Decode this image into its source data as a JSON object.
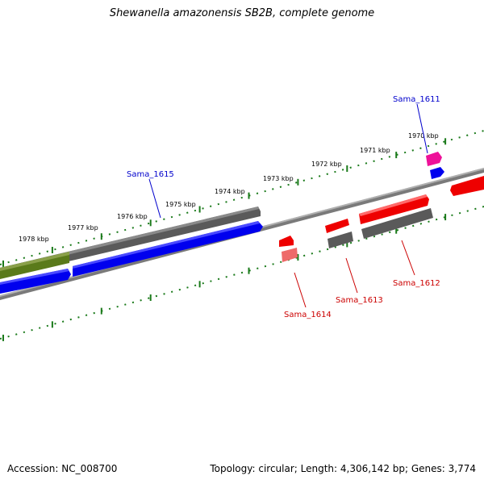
{
  "title": "Shewanella amazonensis SB2B, complete genome",
  "footer": {
    "accession": "Accession: NC_008700",
    "summary": "Topology: circular; Length: 4,306,142 bp; Genes: 3,774"
  },
  "colors": {
    "ruler": "#1a7a1a",
    "backbone": "#7a7a7a",
    "forward_gene": "#0000ee",
    "highlight_gene": "#ee0000",
    "gray_feature": "#555555",
    "olive_feature": "#5a7a1a",
    "magenta_feature": "#ee1199",
    "label_blue": "#0000cc",
    "label_red": "#cc0000"
  },
  "ruler_labels": [
    "1978 kbp",
    "1977 kbp",
    "1976 kbp",
    "1975 kbp",
    "1974 kbp",
    "1973 kbp",
    "1972 kbp",
    "1971 kbp",
    "1970 kbp"
  ],
  "gene_labels": [
    {
      "text": "Sama_1611",
      "color": "blue"
    },
    {
      "text": "Sama_1615",
      "color": "blue"
    },
    {
      "text": "Sama_1612",
      "color": "red"
    },
    {
      "text": "Sama_1613",
      "color": "red"
    },
    {
      "text": "Sama_1614",
      "color": "red"
    }
  ]
}
